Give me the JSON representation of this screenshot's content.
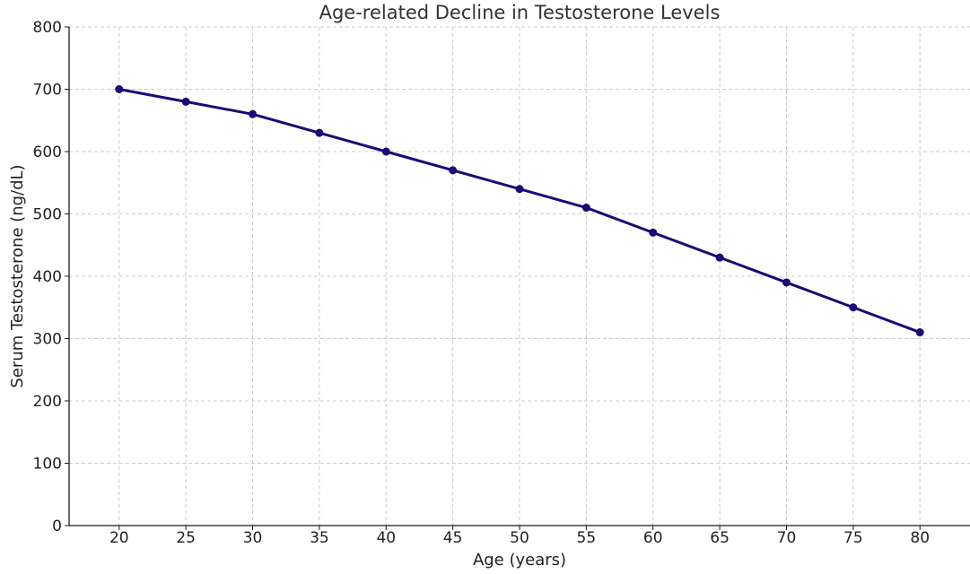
{
  "chart_data": {
    "type": "line",
    "title": "Age-related Decline in Testosterone Levels",
    "xlabel": "Age (years)",
    "ylabel": "Serum Testosterone (ng/dL)",
    "x": [
      20,
      25,
      30,
      35,
      40,
      45,
      50,
      55,
      60,
      65,
      70,
      75,
      80
    ],
    "series": [
      {
        "values": [
          700,
          680,
          660,
          630,
          600,
          570,
          540,
          510,
          470,
          430,
          390,
          350,
          310
        ]
      }
    ],
    "xticks": [
      20,
      25,
      30,
      35,
      40,
      45,
      50,
      55,
      60,
      65,
      70,
      75,
      80
    ],
    "yticks": [
      0,
      100,
      200,
      300,
      400,
      500,
      600,
      700,
      800
    ],
    "xlim": [
      16.25,
      83.75
    ],
    "ylim": [
      0,
      800
    ],
    "grid": true,
    "markers": true,
    "line_color": "#1b0a78"
  }
}
